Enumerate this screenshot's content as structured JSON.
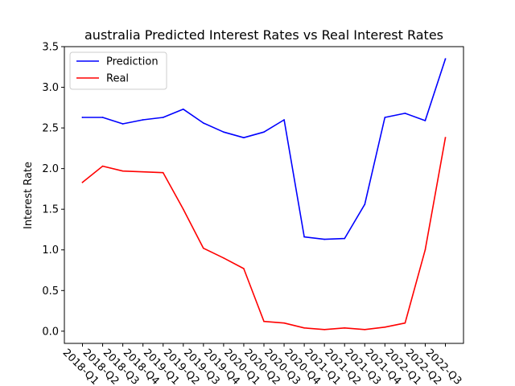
{
  "chart_data": {
    "type": "line",
    "title": "australia Predicted Interest Rates vs Real Interest Rates",
    "xlabel": "",
    "ylabel": "Interest Rate",
    "ylim": [
      -0.15,
      3.5
    ],
    "yticks": [
      0.0,
      0.5,
      1.0,
      1.5,
      2.0,
      2.5,
      3.0,
      3.5
    ],
    "ytick_labels": [
      "0.0",
      "0.5",
      "1.0",
      "1.5",
      "2.0",
      "2.5",
      "3.0",
      "3.5"
    ],
    "grid": false,
    "legend_position": "top-left",
    "categories": [
      "2018-Q1",
      "2018-Q2",
      "2018-Q3",
      "2018-Q4",
      "2019-Q1",
      "2019-Q2",
      "2019-Q3",
      "2019-Q4",
      "2020-Q1",
      "2020-Q2",
      "2020-Q3",
      "2020-Q4",
      "2021-Q1",
      "2021-Q2",
      "2021-Q3",
      "2021-Q4",
      "2022-Q1",
      "2022-Q2",
      "2022-Q3"
    ],
    "series": [
      {
        "name": "Prediction",
        "color": "#0000ff",
        "values": [
          2.63,
          2.63,
          2.55,
          2.6,
          2.63,
          2.73,
          2.56,
          2.45,
          2.38,
          2.45,
          2.6,
          1.16,
          1.13,
          1.14,
          1.56,
          2.63,
          2.68,
          2.59,
          3.35
        ]
      },
      {
        "name": "Real",
        "color": "#ff0000",
        "values": [
          1.83,
          2.03,
          1.97,
          1.96,
          1.95,
          1.5,
          1.02,
          0.9,
          0.77,
          0.12,
          0.1,
          0.04,
          0.02,
          0.04,
          0.02,
          0.05,
          0.1,
          1.0,
          2.38
        ]
      }
    ]
  }
}
